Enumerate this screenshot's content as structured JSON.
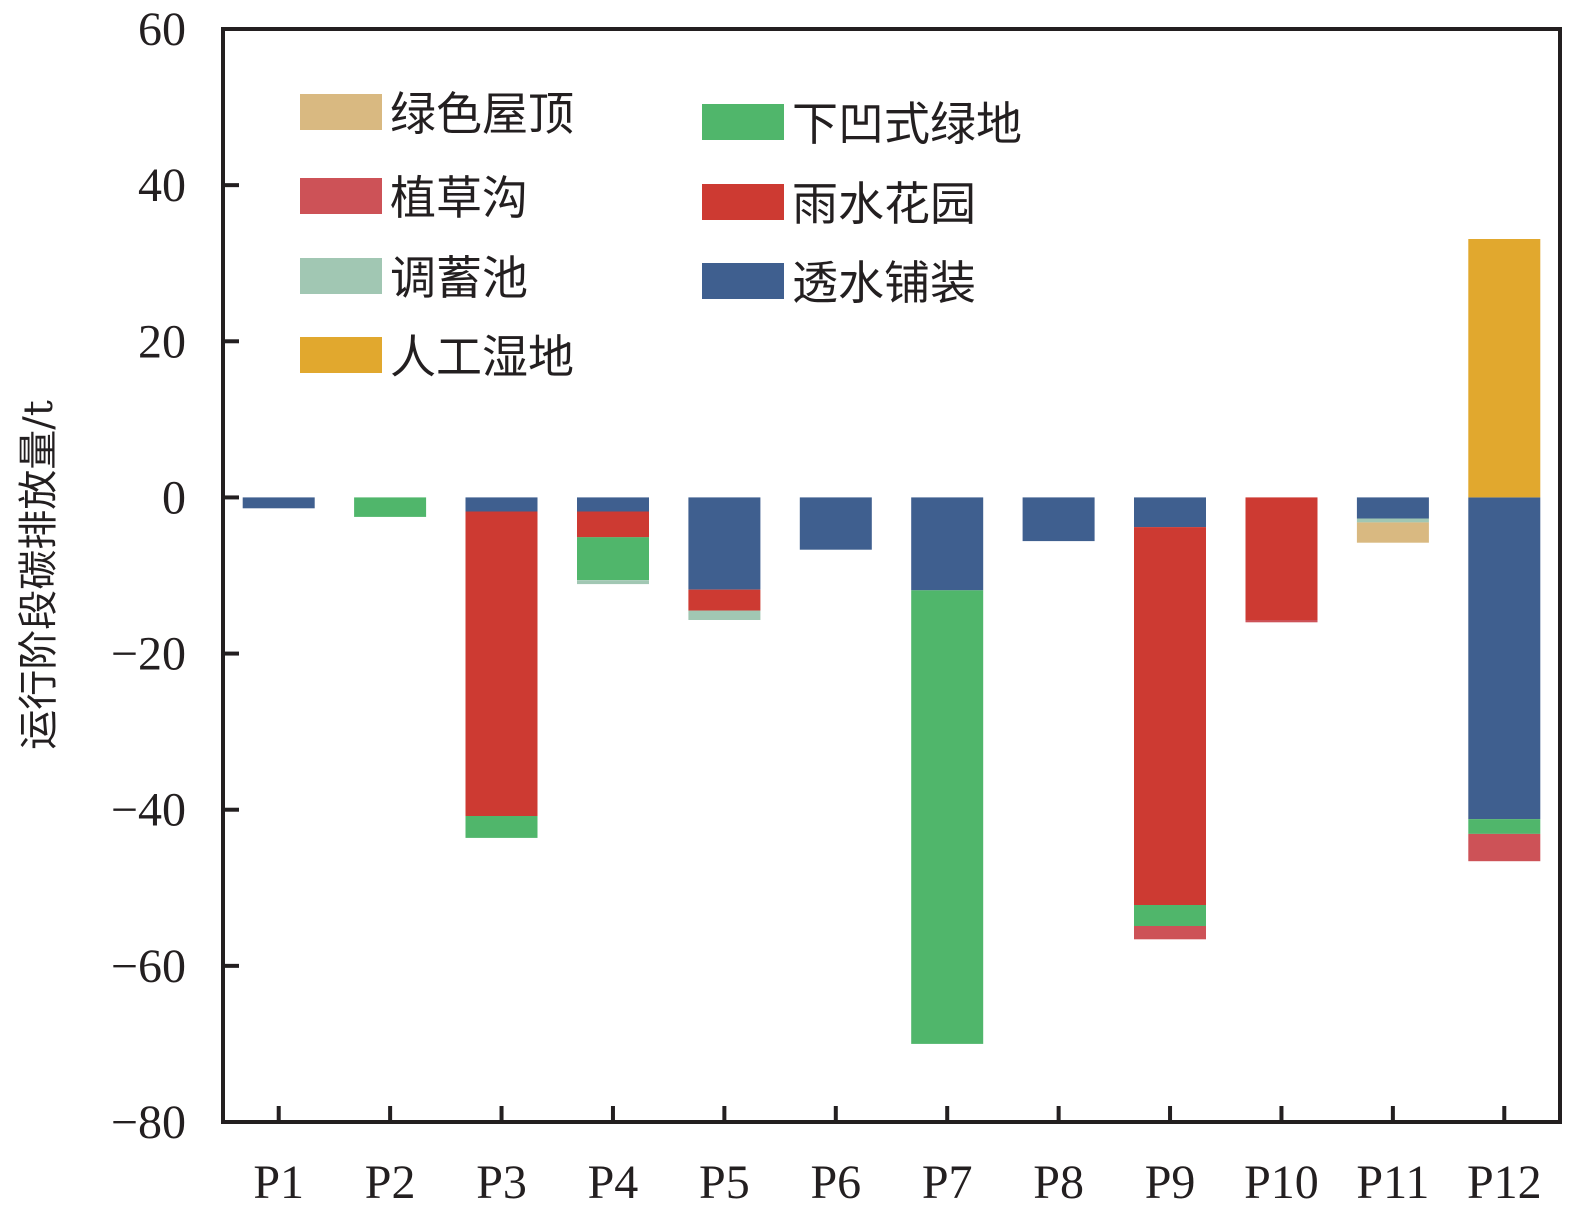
{
  "chart_data": {
    "type": "bar",
    "stacked": true,
    "title": "",
    "xlabel": "",
    "ylabel": "运行阶段碳排放量/t",
    "ylim": [
      -80,
      60
    ],
    "yticks": [
      60,
      40,
      20,
      0,
      -20,
      -40,
      -60,
      -80
    ],
    "ytick_labels": [
      "60",
      "40",
      "20",
      "0",
      "−20",
      "−40",
      "−60",
      "−80"
    ],
    "grid": false,
    "legend_position": "top-left",
    "categories": [
      "P1",
      "P2",
      "P3",
      "P4",
      "P5",
      "P6",
      "P7",
      "P8",
      "P9",
      "P10",
      "P11",
      "P12"
    ],
    "series": [
      {
        "name": "透水铺装",
        "color": "#3f5f8f",
        "values": [
          -1.4,
          0,
          -1.8,
          -1.8,
          -11.8,
          -6.7,
          -11.9,
          -5.6,
          -3.8,
          0,
          -2.7,
          -41.2
        ]
      },
      {
        "name": "雨水花园",
        "color": "#cd3a32",
        "values": [
          0,
          0,
          -39.0,
          -3.3,
          -2.7,
          0,
          0,
          0,
          -48.4,
          -15.7,
          0,
          0
        ]
      },
      {
        "name": "下凹式绿地",
        "color": "#50b66b",
        "values": [
          0,
          -2.5,
          -2.8,
          -5.5,
          0,
          0,
          -58.1,
          0,
          -2.7,
          0,
          0,
          -1.9
        ]
      },
      {
        "name": "调蓄池",
        "color": "#a1c7b3",
        "values": [
          0,
          0,
          0,
          -0.5,
          -1.2,
          0,
          0,
          0,
          0,
          0,
          -0.5,
          0
        ]
      },
      {
        "name": "植草沟",
        "color": "#cd5257",
        "values": [
          0,
          0,
          0,
          0,
          0,
          0,
          0,
          0,
          -1.7,
          -0.3,
          0,
          -3.5
        ]
      },
      {
        "name": "绿色屋顶",
        "color": "#d9b981",
        "values": [
          0,
          0,
          0,
          0,
          0,
          0,
          0,
          0,
          0,
          0,
          -2.6,
          0
        ]
      },
      {
        "name": "人工湿地",
        "color": "#e1a82e",
        "values": [
          0,
          0,
          0,
          0,
          0,
          0,
          0,
          0,
          0,
          0,
          0,
          33.1
        ]
      }
    ],
    "legend": [
      {
        "name": "绿色屋顶",
        "color": "#d9b981"
      },
      {
        "name": "下凹式绿地",
        "color": "#50b66b"
      },
      {
        "name": "植草沟",
        "color": "#cd5257"
      },
      {
        "name": "雨水花园",
        "color": "#cd3a32"
      },
      {
        "name": "调蓄池",
        "color": "#a1c7b3"
      },
      {
        "name": "透水铺装",
        "color": "#3f5f8f"
      },
      {
        "name": "人工湿地",
        "color": "#e1a82e"
      }
    ]
  }
}
